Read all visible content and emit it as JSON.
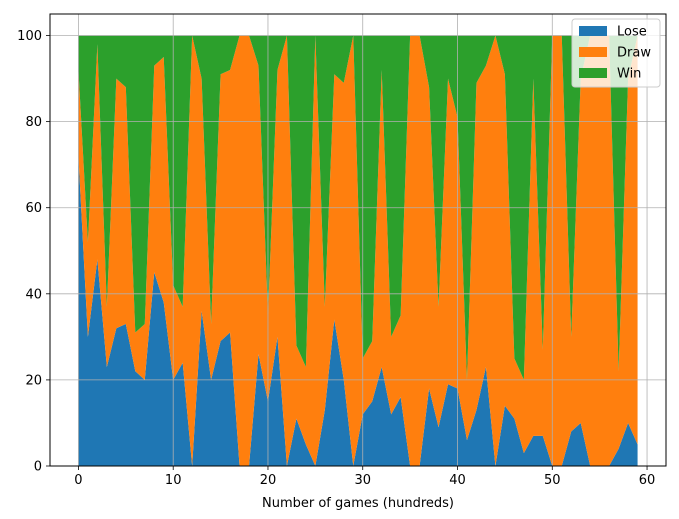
{
  "chart_data": {
    "type": "area",
    "stacked": true,
    "title": "",
    "xlabel": "Number of games (hundreds)",
    "ylabel": "",
    "xlim": [
      -3,
      62
    ],
    "ylim": [
      0,
      105
    ],
    "xticks": [
      "0",
      "10",
      "20",
      "30",
      "40",
      "50",
      "60"
    ],
    "yticks": [
      "0",
      "20",
      "40",
      "60",
      "80",
      "100"
    ],
    "grid": true,
    "legend_position": "top-right",
    "x": [
      0,
      1,
      2,
      3,
      4,
      5,
      6,
      7,
      8,
      9,
      10,
      11,
      12,
      13,
      14,
      15,
      16,
      17,
      18,
      19,
      20,
      21,
      22,
      23,
      24,
      25,
      26,
      27,
      28,
      29,
      30,
      31,
      32,
      33,
      34,
      35,
      36,
      37,
      38,
      39,
      40,
      41,
      42,
      43,
      44,
      45,
      46,
      47,
      48,
      49,
      50,
      51,
      52,
      53,
      54,
      55,
      56,
      57,
      58,
      59
    ],
    "series": [
      {
        "name": "Lose",
        "color": "#1f77b4",
        "values": [
          72,
          30,
          48,
          23,
          32,
          33,
          22,
          20,
          45,
          38,
          20,
          24,
          0,
          36,
          20,
          29,
          31,
          0,
          0,
          26,
          15,
          30,
          0,
          11,
          5,
          0,
          13,
          34,
          20,
          0,
          12,
          15,
          23,
          12,
          16,
          0,
          0,
          18,
          9,
          19,
          18,
          6,
          13,
          23,
          0,
          14,
          11,
          3,
          7,
          7,
          0,
          0,
          8,
          10,
          0,
          0,
          0,
          4,
          10,
          5
        ]
      },
      {
        "name": "Draw",
        "color": "#ff7f0e",
        "values": [
          20,
          22,
          50,
          14,
          58,
          55,
          9,
          13,
          48,
          57,
          22,
          13,
          100,
          54,
          13,
          62,
          61,
          100,
          100,
          67,
          20,
          62,
          100,
          17,
          18,
          100,
          24,
          57,
          69,
          100,
          13,
          14,
          69,
          18,
          19,
          100,
          100,
          70,
          28,
          71,
          63,
          14,
          76,
          70,
          100,
          77,
          14,
          17,
          83,
          20,
          100,
          100,
          22,
          80,
          100,
          100,
          100,
          18,
          80,
          95
        ]
      },
      {
        "name": "Win",
        "color": "#2ca02c",
        "values": [
          8,
          48,
          2,
          63,
          10,
          12,
          69,
          67,
          7,
          5,
          58,
          63,
          0,
          10,
          67,
          9,
          8,
          0,
          0,
          7,
          65,
          8,
          0,
          72,
          77,
          0,
          63,
          9,
          11,
          0,
          75,
          71,
          8,
          70,
          65,
          0,
          0,
          12,
          63,
          10,
          19,
          80,
          11,
          7,
          0,
          9,
          75,
          80,
          10,
          73,
          0,
          0,
          70,
          10,
          0,
          0,
          0,
          78,
          10,
          0
        ]
      }
    ]
  }
}
